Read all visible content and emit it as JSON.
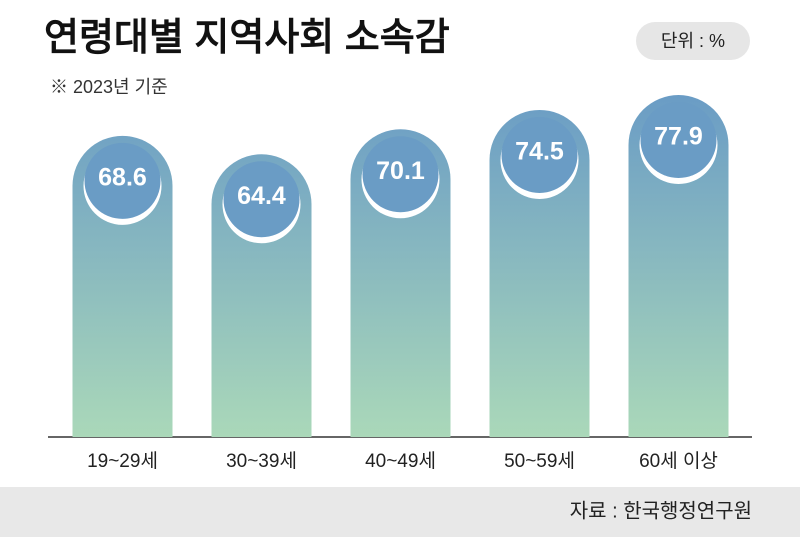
{
  "chart_data": {
    "type": "bar",
    "title": "연령대별 지역사회 소속감",
    "subtitle": "※ 2023년 기준",
    "unit": "단위 : %",
    "source": "자료 : 한국행정연구원",
    "categories": [
      "19~29세",
      "30~39세",
      "40~49세",
      "50~59세",
      "60세 이상"
    ],
    "values": [
      68.6,
      64.4,
      70.1,
      74.5,
      77.9
    ],
    "gradient": {
      "top": "#6a9cc5",
      "bottom": "#aad8b9"
    }
  }
}
